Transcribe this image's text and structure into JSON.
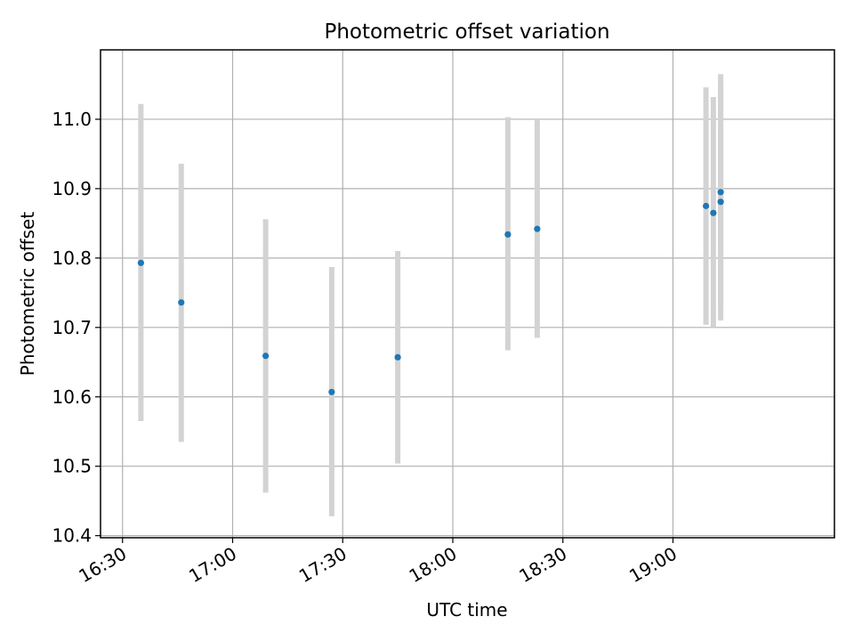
{
  "chart_data": {
    "type": "scatter",
    "title": "Photometric offset variation",
    "xlabel": "UTC time",
    "ylabel": "Photometric offset",
    "x_axis_type": "time",
    "xlim": [
      "16:24",
      "19:44"
    ],
    "ylim": [
      10.397,
      11.1
    ],
    "grid": true,
    "x_ticks": [
      "16:30",
      "17:00",
      "17:30",
      "18:00",
      "18:30",
      "19:00"
    ],
    "y_ticks": [
      "10.4",
      "10.5",
      "10.6",
      "10.7",
      "10.8",
      "10.9",
      "11.0"
    ],
    "marker_color": "#1f77b4",
    "errorbar_color": "#d3d3d3",
    "points": [
      {
        "x": "16:35",
        "y": 10.793,
        "y_low": 10.565,
        "y_high": 11.022
      },
      {
        "x": "16:46",
        "y": 10.736,
        "y_low": 10.535,
        "y_high": 10.936
      },
      {
        "x": "17:09",
        "y": 10.659,
        "y_low": 10.462,
        "y_high": 10.856
      },
      {
        "x": "17:27",
        "y": 10.607,
        "y_low": 10.428,
        "y_high": 10.787
      },
      {
        "x": "17:45",
        "y": 10.657,
        "y_low": 10.504,
        "y_high": 10.81
      },
      {
        "x": "18:15",
        "y": 10.834,
        "y_low": 10.667,
        "y_high": 11.003
      },
      {
        "x": "18:23",
        "y": 10.842,
        "y_low": 10.685,
        "y_high": 11.0
      },
      {
        "x": "19:09",
        "y": 10.875,
        "y_low": 10.704,
        "y_high": 11.046
      },
      {
        "x": "19:11",
        "y": 10.865,
        "y_low": 10.7,
        "y_high": 11.032
      },
      {
        "x": "19:13",
        "y": 10.895,
        "y_low": 10.725,
        "y_high": 11.065
      },
      {
        "x": "19:13",
        "y": 10.881,
        "y_low": 10.71,
        "y_high": 11.055
      }
    ]
  }
}
